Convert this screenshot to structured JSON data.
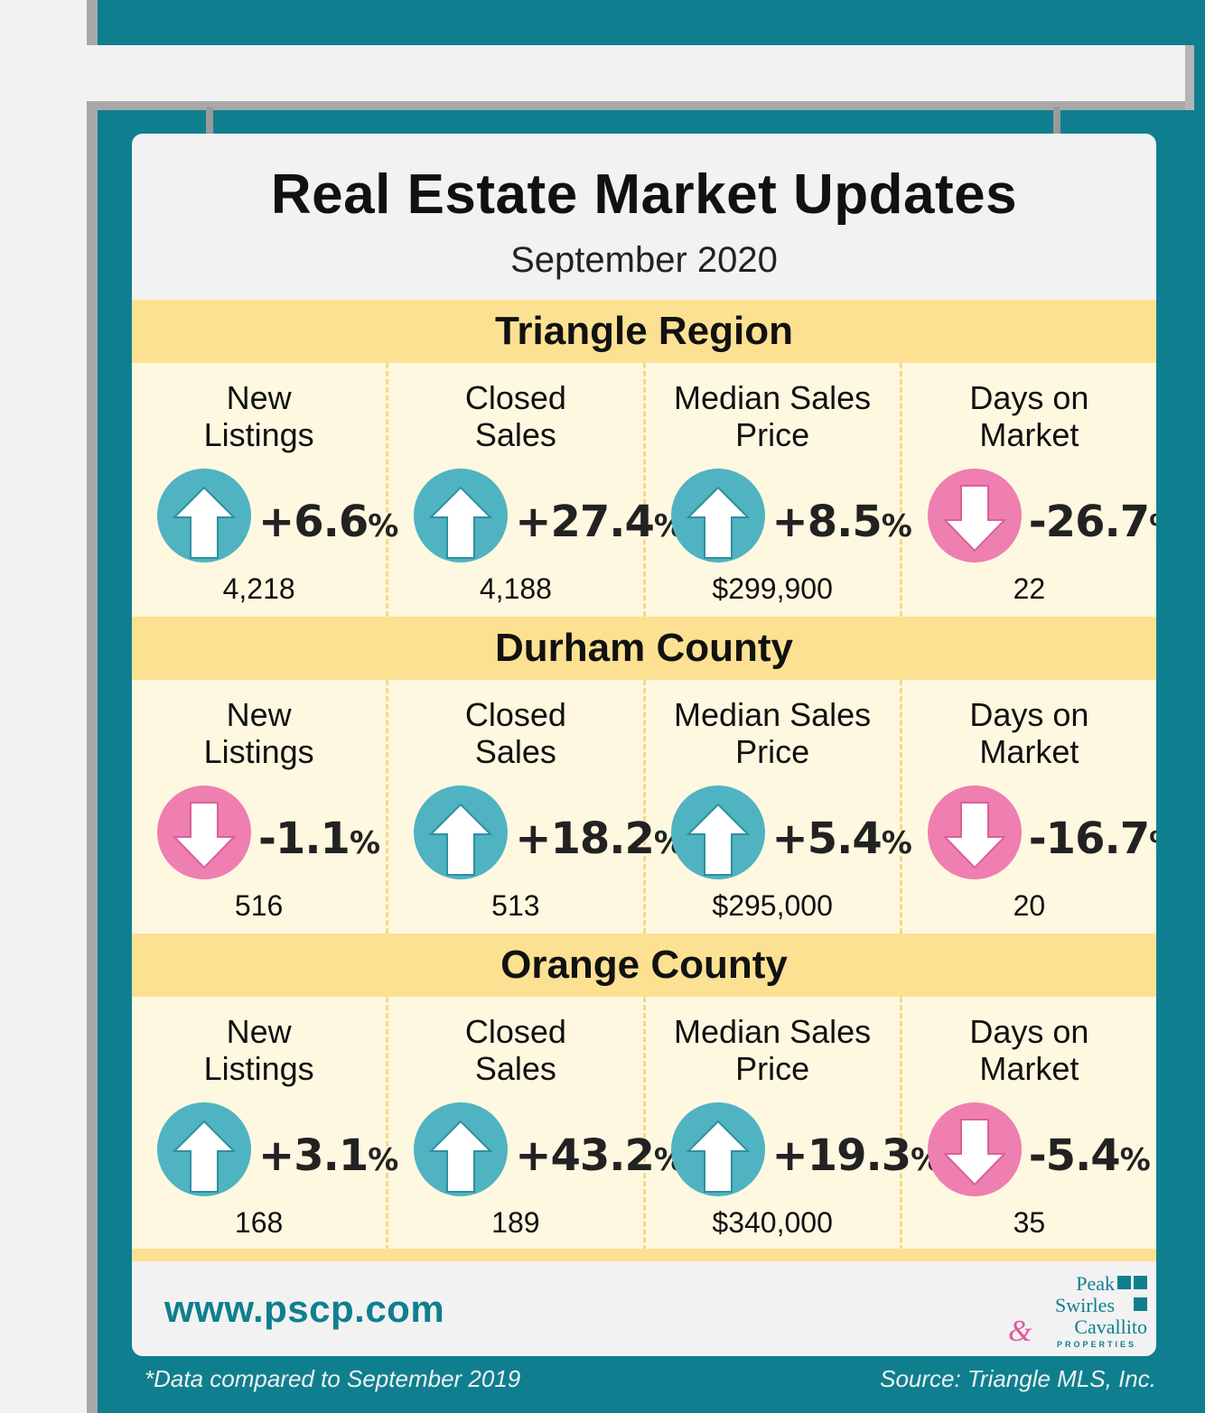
{
  "title": "Real Estate Market Updates",
  "subtitle": "September 2020",
  "colors": {
    "up": "#4fb3c2",
    "down": "#ee7fb0",
    "band": "#fde192",
    "teal": "#0f7f8f"
  },
  "sections": [
    {
      "name": "Triangle Region",
      "metrics": [
        {
          "label1": "New",
          "label2": "Listings",
          "direction": "up",
          "change": "+6.6",
          "unit": "%",
          "value": "4,218"
        },
        {
          "label1": "Closed",
          "label2": "Sales",
          "direction": "up",
          "change": "+27.4",
          "unit": "%",
          "value": "4,188"
        },
        {
          "label1": "Median Sales",
          "label2": "Price",
          "direction": "up",
          "change": "+8.5",
          "unit": "%",
          "value": "$299,900"
        },
        {
          "label1": "Days on",
          "label2": "Market",
          "direction": "down",
          "change": "-26.7",
          "unit": "%",
          "value": "22"
        }
      ]
    },
    {
      "name": "Durham County",
      "metrics": [
        {
          "label1": "New",
          "label2": "Listings",
          "direction": "down",
          "change": "-1.1",
          "unit": "%",
          "value": "516"
        },
        {
          "label1": "Closed",
          "label2": "Sales",
          "direction": "up",
          "change": "+18.2",
          "unit": "%",
          "value": "513"
        },
        {
          "label1": "Median Sales",
          "label2": "Price",
          "direction": "up",
          "change": "+5.4",
          "unit": "%",
          "value": "$295,000"
        },
        {
          "label1": "Days on",
          "label2": "Market",
          "direction": "down",
          "change": "-16.7",
          "unit": "%",
          "value": "20"
        }
      ]
    },
    {
      "name": "Orange County",
      "metrics": [
        {
          "label1": "New",
          "label2": "Listings",
          "direction": "up",
          "change": "+3.1",
          "unit": "%",
          "value": "168"
        },
        {
          "label1": "Closed",
          "label2": "Sales",
          "direction": "up",
          "change": "+43.2",
          "unit": "%",
          "value": "189"
        },
        {
          "label1": "Median Sales",
          "label2": "Price",
          "direction": "up",
          "change": "+19.3",
          "unit": "%",
          "value": "$340,000"
        },
        {
          "label1": "Days on",
          "label2": "Market",
          "direction": "down",
          "change": "-5.4",
          "unit": "%",
          "value": "35"
        }
      ]
    }
  ],
  "website": "www.pscp.com",
  "logo": {
    "line1": "Peak",
    "line2": "Swirles",
    "amp": "&",
    "line3": "Cavallito",
    "sub": "PROPERTIES"
  },
  "footnote_left": "*Data compared to September 2019",
  "footnote_right": "Source: Triangle MLS, Inc."
}
